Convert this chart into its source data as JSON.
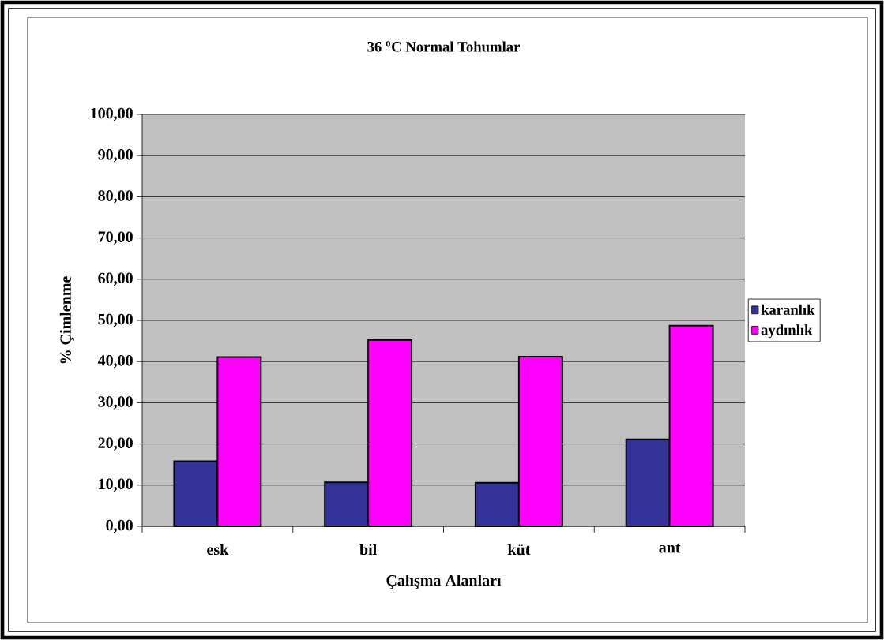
{
  "chart_data": {
    "type": "bar",
    "title": "36 $^{o}$C Normal Tohumlar",
    "xlabel": "Çalışma Alanları",
    "ylabel": "% Çimlenme",
    "categories": [
      "esk",
      "bil",
      "küt",
      "ant"
    ],
    "series": [
      {
        "name": "karanlık",
        "color": "#333399",
        "values": [
          15.8,
          10.7,
          10.6,
          21.1
        ]
      },
      {
        "name": "aydınlık",
        "color": "#ff00ff",
        "values": [
          41.1,
          45.2,
          41.2,
          48.7
        ]
      }
    ],
    "ylim": [
      0,
      100
    ],
    "yticks": [
      {
        "value": 0,
        "label": "0,00"
      },
      {
        "value": 10,
        "label": "10,00"
      },
      {
        "value": 20,
        "label": "20,00"
      },
      {
        "value": 30,
        "label": "30,00"
      },
      {
        "value": 40,
        "label": "40,00"
      },
      {
        "value": 50,
        "label": "50,00"
      },
      {
        "value": 60,
        "label": "60,00"
      },
      {
        "value": 70,
        "label": "70,00"
      },
      {
        "value": 80,
        "label": "80,00"
      },
      {
        "value": 90,
        "label": "90,00"
      },
      {
        "value": 100,
        "label": "100,00"
      }
    ],
    "grid": "y",
    "legend": "right"
  }
}
